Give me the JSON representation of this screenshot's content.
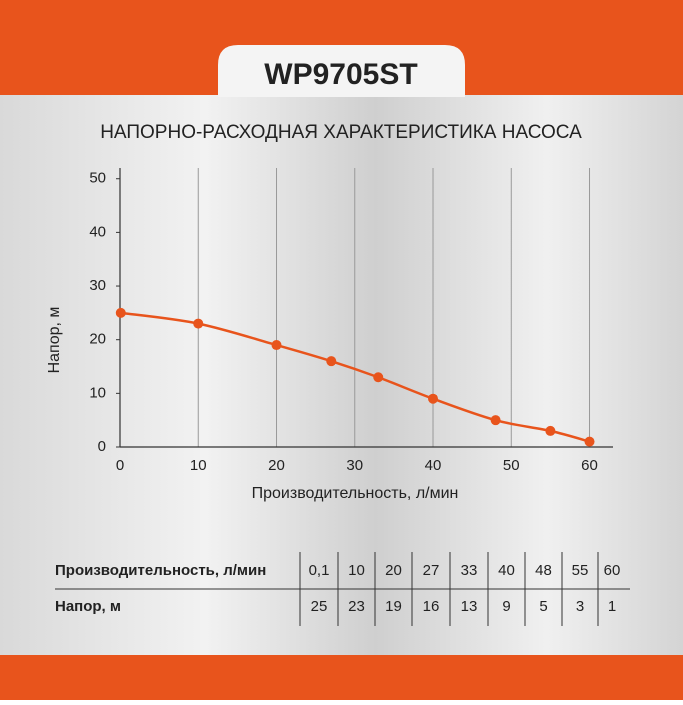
{
  "header": {
    "title": "WP9705ST"
  },
  "chart_data": {
    "type": "line",
    "title": "НАПОРНО-РАСХОДНАЯ ХАРАКТЕРИСТИКА НАСОСА",
    "x_label": "Производительность, л/мин",
    "y_label": "Напор, м",
    "x": [
      0.1,
      10,
      20,
      27,
      33,
      40,
      48,
      55,
      60
    ],
    "series": [
      {
        "name": "Напор",
        "color": "#e8541c",
        "values": [
          25,
          23,
          19,
          16,
          13,
          9,
          5,
          3,
          1
        ]
      }
    ],
    "xlim": [
      0,
      63
    ],
    "ylim": [
      0,
      52
    ],
    "xticks": [
      0,
      10,
      20,
      30,
      40,
      50,
      60
    ],
    "yticks": [
      0,
      10,
      20,
      30,
      40,
      50
    ],
    "grid": true
  },
  "table": {
    "rows": [
      [
        "Производительность, л/мин",
        "0,1",
        "10",
        "20",
        "27",
        "33",
        "40",
        "48",
        "55",
        "60"
      ],
      [
        "Напор, м",
        "25",
        "23",
        "19",
        "16",
        "13",
        "9",
        "5",
        "3",
        "1"
      ]
    ]
  }
}
